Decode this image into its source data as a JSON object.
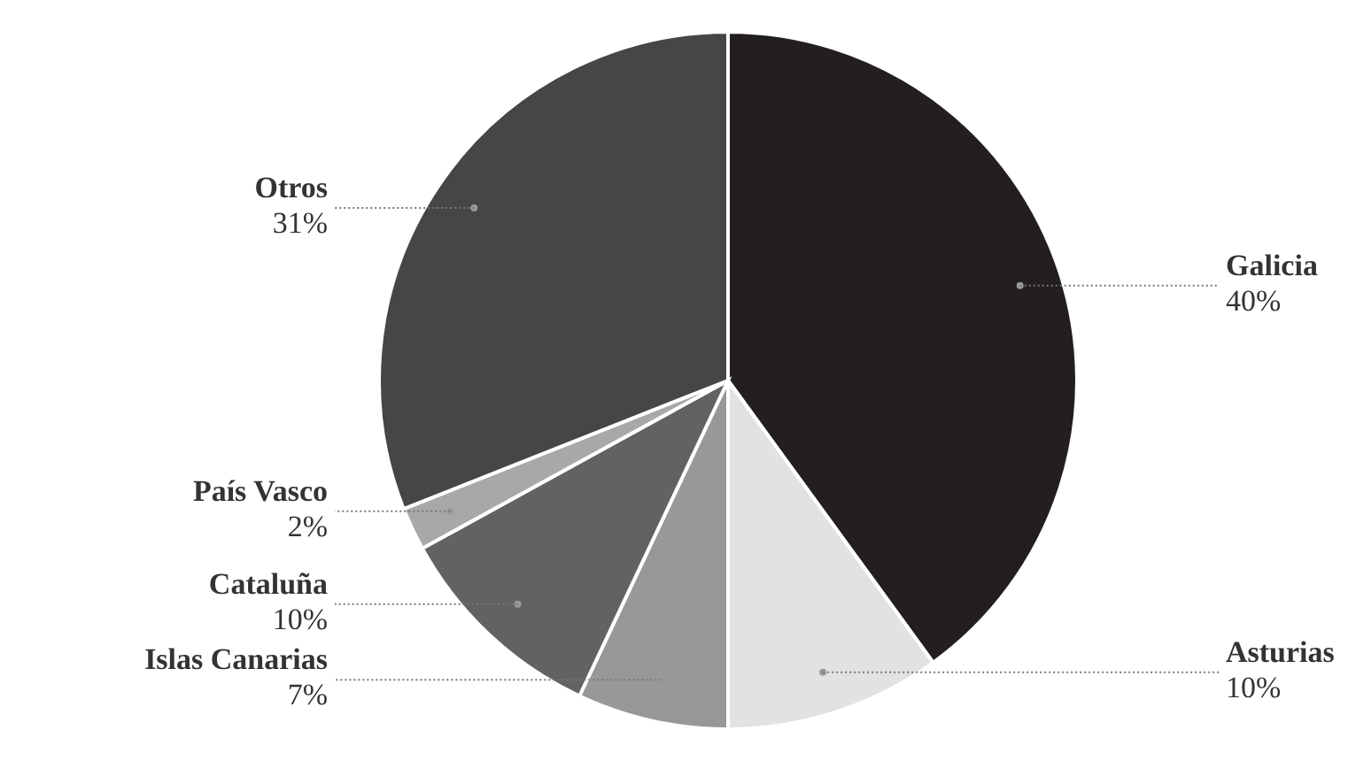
{
  "chart_data": {
    "type": "pie",
    "categories": [
      "Galicia",
      "Asturias",
      "Islas Canarias",
      "Cataluña",
      "País Vasco",
      "Otros"
    ],
    "values": [
      40,
      10,
      7,
      10,
      2,
      31
    ],
    "value_labels": [
      "40%",
      "10%",
      "7%",
      "10%",
      "2%",
      "31%"
    ],
    "colors": [
      "#231f20",
      "#e2e2e3",
      "#97989a",
      "#626264",
      "#a7a8aa",
      "#454648"
    ]
  }
}
